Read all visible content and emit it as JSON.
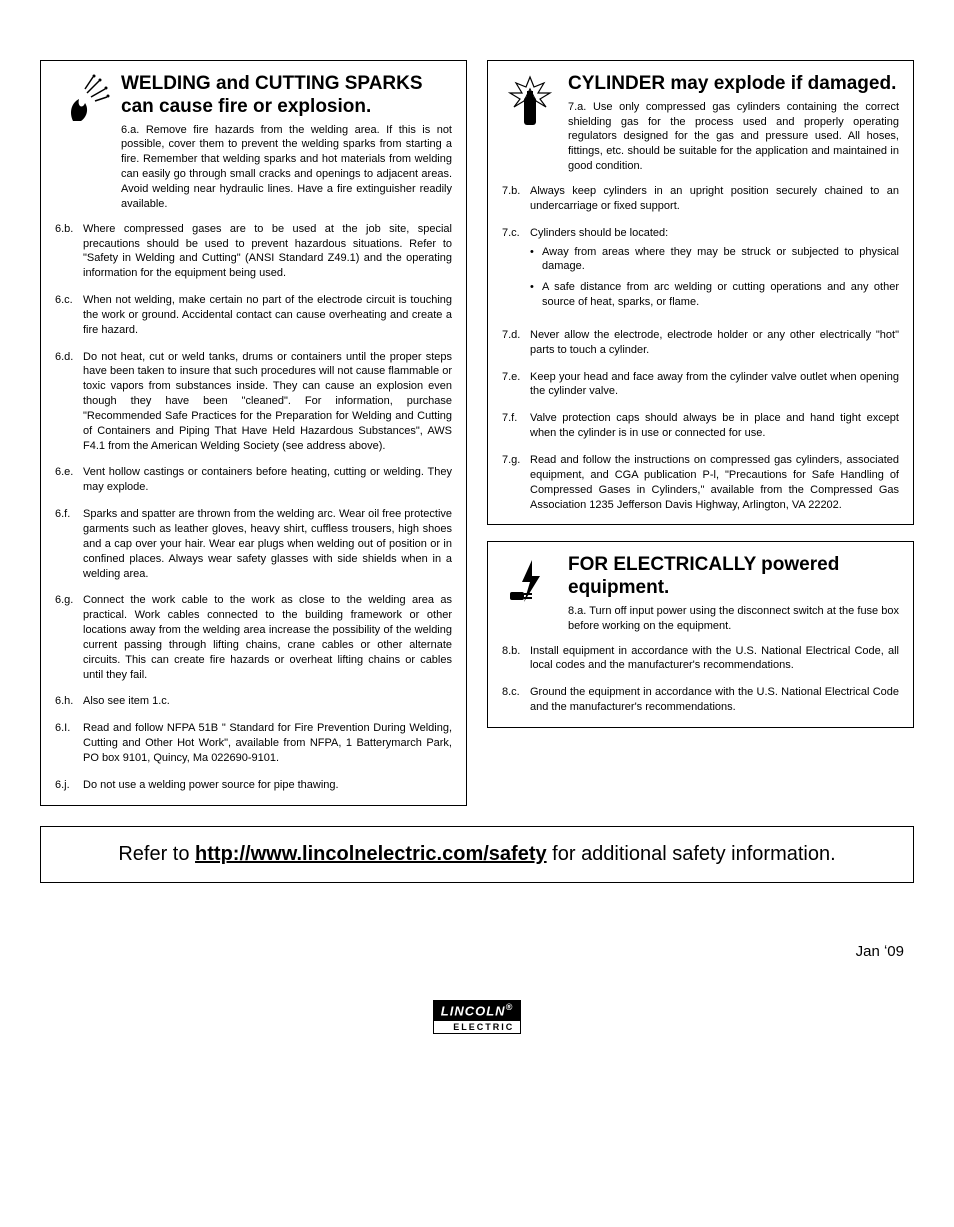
{
  "left": {
    "welding": {
      "title": "WELDING and CUTTING SPARKS can cause fire or explosion.",
      "first": "6.a. Remove fire hazards from the welding area. If this is not possible, cover them to prevent the welding sparks from starting a fire. Remember that welding sparks and hot materials from welding can easily go through small cracks and openings to adjacent areas. Avoid welding near hydraulic lines. Have a fire extinguisher readily available.",
      "items": [
        {
          "num": "6.b.",
          "text": "Where compressed gases are to be used at the job site, special precautions should be used to prevent hazardous situations. Refer to \"Safety in Welding and Cutting\" (ANSI Standard Z49.1) and the operating information for the equipment being used."
        },
        {
          "num": "6.c.",
          "text": "When not welding, make certain no part of the electrode circuit is touching the work or ground. Accidental contact can cause overheating and create a fire hazard."
        },
        {
          "num": "6.d.",
          "text": "Do not heat, cut or weld tanks, drums or containers until the proper steps have been taken to insure that such procedures will not cause flammable or toxic vapors from substances inside. They can cause an explosion even though they have been \"cleaned\". For information, purchase \"Recommended Safe Practices for the Preparation for Welding and Cutting of Containers and Piping That Have Held Hazardous Substances\", AWS F4.1 from the American Welding Society (see address above)."
        },
        {
          "num": "6.e.",
          "text": "Vent hollow castings or containers before heating, cutting or welding. They may explode."
        },
        {
          "num": "6.f.",
          "text": "Sparks and spatter are thrown from the welding arc. Wear oil free protective garments such as leather gloves, heavy shirt, cuffless trousers, high shoes and a cap over your hair. Wear ear plugs when welding out of position or in confined places. Always wear safety glasses with side shields when in a welding area."
        },
        {
          "num": "6.g.",
          "text": "Connect the work cable to the work as close to the welding area as practical. Work cables connected to the building framework or other locations away from the welding area increase the possibility of the welding current passing through lifting chains, crane cables or other alternate circuits. This can create fire hazards or overheat lifting chains or cables until they fail."
        },
        {
          "num": "6.h.",
          "text": "Also see item 1.c."
        },
        {
          "num": "6.I.",
          "text": "Read and follow NFPA 51B \" Standard for Fire Prevention During Welding, Cutting and Other Hot Work\", available from NFPA, 1 Batterymarch Park, PO box 9101, Quincy, Ma 022690-9101."
        },
        {
          "num": "6.j.",
          "text": "Do not use a welding power source for pipe thawing."
        }
      ]
    }
  },
  "right": {
    "cylinder": {
      "title": "CYLINDER may explode if damaged.",
      "first": "7.a. Use only compressed gas cylinders containing the correct shielding gas for the process used and properly operating regulators designed for the gas and pressure used. All hoses, fittings, etc. should be suitable for the application and maintained in good condition.",
      "items": [
        {
          "num": "7.b.",
          "text": "Always keep cylinders in an upright position securely chained to an undercarriage or fixed support."
        },
        {
          "num": "7.c.",
          "text": "Cylinders should be located:",
          "bullets": [
            "Away from areas where they may be struck or subjected to physical damage.",
            "A safe distance from arc welding or cutting operations and any other source of heat, sparks, or flame."
          ]
        },
        {
          "num": "7.d.",
          "text": "Never allow the electrode, electrode holder or any other electrically \"hot\" parts to touch a cylinder."
        },
        {
          "num": "7.e.",
          "text": "Keep your head and face away from the cylinder valve outlet when opening the cylinder valve."
        },
        {
          "num": "7.f.",
          "text": "Valve protection caps should always be in place and hand tight except when the cylinder is in use or connected for use."
        },
        {
          "num": "7.g.",
          "text": "Read and follow the instructions on compressed gas cylinders, associated equipment, and CGA publication P-l, \"Precautions for Safe Handling of Compressed Gases in Cylinders,\" available from the Compressed Gas Association 1235 Jefferson Davis Highway, Arlington, VA 22202."
        }
      ]
    },
    "electrical": {
      "title": "FOR ELECTRICALLY powered equipment.",
      "first": "8.a. Turn off input power using the disconnect switch at the fuse box before working on the equipment.",
      "items": [
        {
          "num": "8.b.",
          "text": "Install equipment in accordance with the U.S. National Electrical Code, all local codes and the manufacturer's recommendations."
        },
        {
          "num": "8.c.",
          "text": "Ground the equipment in accordance with the U.S. National Electrical Code and the manufacturer's recommendations."
        }
      ]
    }
  },
  "footer": {
    "prefix": "Refer to ",
    "link": "http://www.lincolnelectric.com/safety",
    "suffix": " for additional safety information."
  },
  "date": "Jan ʻ09",
  "logo": {
    "top": "LINCOLN",
    "bottom": "ELECTRIC"
  }
}
